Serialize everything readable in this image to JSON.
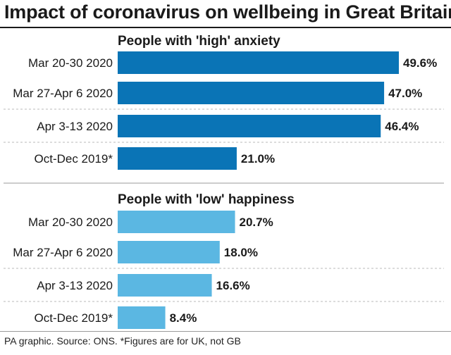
{
  "title": "Impact of coronavirus on wellbeing in Great Britain",
  "footer": "PA graphic. Source: ONS. *Figures are for UK, not GB",
  "colors": {
    "anxiety": "#0a74b6",
    "happiness": "#5bb7e2"
  },
  "chart_data": [
    {
      "type": "bar",
      "orientation": "horizontal",
      "title": "People with 'high' anxiety",
      "categories": [
        "Mar 20-30 2020",
        "Mar 27-Apr 6 2020",
        "Apr 3-13 2020",
        "Oct-Dec 2019*"
      ],
      "values": [
        49.6,
        47.0,
        46.4,
        21.0
      ],
      "value_labels": [
        "49.6%",
        "47.0%",
        "46.4%",
        "21.0%"
      ],
      "unit": "%",
      "xlim": [
        0,
        50
      ],
      "grid": false
    },
    {
      "type": "bar",
      "orientation": "horizontal",
      "title": "People with 'low' happiness",
      "categories": [
        "Mar 20-30 2020",
        "Mar 27-Apr 6 2020",
        "Apr 3-13 2020",
        "Oct-Dec 2019*"
      ],
      "values": [
        20.7,
        18.0,
        16.6,
        8.4
      ],
      "value_labels": [
        "20.7%",
        "18.0%",
        "16.6%",
        "8.4%"
      ],
      "unit": "%",
      "xlim": [
        0,
        50
      ],
      "grid": false
    }
  ]
}
